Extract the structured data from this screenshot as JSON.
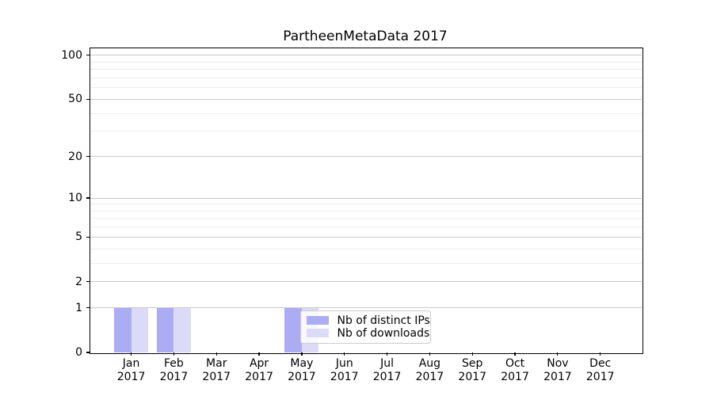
{
  "chart_data": {
    "type": "bar",
    "title": "PartheenMetaData 2017",
    "categories": [
      "Jan",
      "Feb",
      "Mar",
      "Apr",
      "May",
      "Jun",
      "Jul",
      "Aug",
      "Sep",
      "Oct",
      "Nov",
      "Dec"
    ],
    "category_year": "2017",
    "series": [
      {
        "name": "Nb of distinct IPs",
        "color": "#acacf4",
        "values": [
          1,
          1,
          0,
          0,
          1,
          0,
          0,
          0,
          0,
          0,
          0,
          0
        ]
      },
      {
        "name": "Nb of downloads",
        "color": "#dbdbf8",
        "values": [
          1,
          1,
          0,
          0,
          1,
          0,
          0,
          0,
          0,
          0,
          0,
          0
        ]
      }
    ],
    "xlabel": "",
    "ylabel": "",
    "yscale": "log10(value+1)",
    "ylim": [
      0,
      113
    ],
    "y_major_ticks": [
      0,
      1,
      2,
      5,
      10,
      20,
      50,
      100
    ],
    "y_minor_ticks": [
      3,
      4,
      6,
      7,
      8,
      9,
      30,
      40,
      60,
      70,
      80,
      90
    ],
    "grid": "horizontal-major-and-minor",
    "legend_position": "inside-lower-center",
    "colors": {
      "major_grid": "#c9c9c9",
      "minor_grid": "#ededed",
      "spine": "#000000",
      "background": "#ffffff"
    }
  }
}
